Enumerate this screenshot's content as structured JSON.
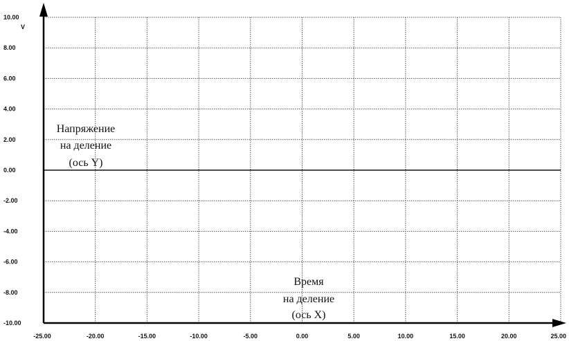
{
  "chart_data": {
    "type": "line",
    "title": "",
    "x_ticks": [
      "-25.00",
      "-20.00",
      "-15.00",
      "-10.00",
      "-5.00",
      "0.00",
      "5.00",
      "10.00",
      "15.00",
      "20.00",
      "25.00"
    ],
    "y_ticks": [
      "10.00",
      "8.00",
      "6.00",
      "4.00",
      "2.00",
      "0.00",
      "-2.00",
      "-4.00",
      "-6.00",
      "-8.00",
      "-10.00"
    ],
    "xlim": [
      -25,
      25
    ],
    "ylim": [
      -10,
      10
    ],
    "y_unit": "V",
    "grid": true,
    "series": [
      {
        "x": [
          -25,
          25
        ],
        "values": [
          0,
          0
        ]
      }
    ],
    "annotations": {
      "y_axis_label": [
        "Напряжение",
        "на деление",
        "(ось Y)"
      ],
      "x_axis_label": [
        "Время",
        "на деление",
        "(ось X)"
      ]
    }
  }
}
